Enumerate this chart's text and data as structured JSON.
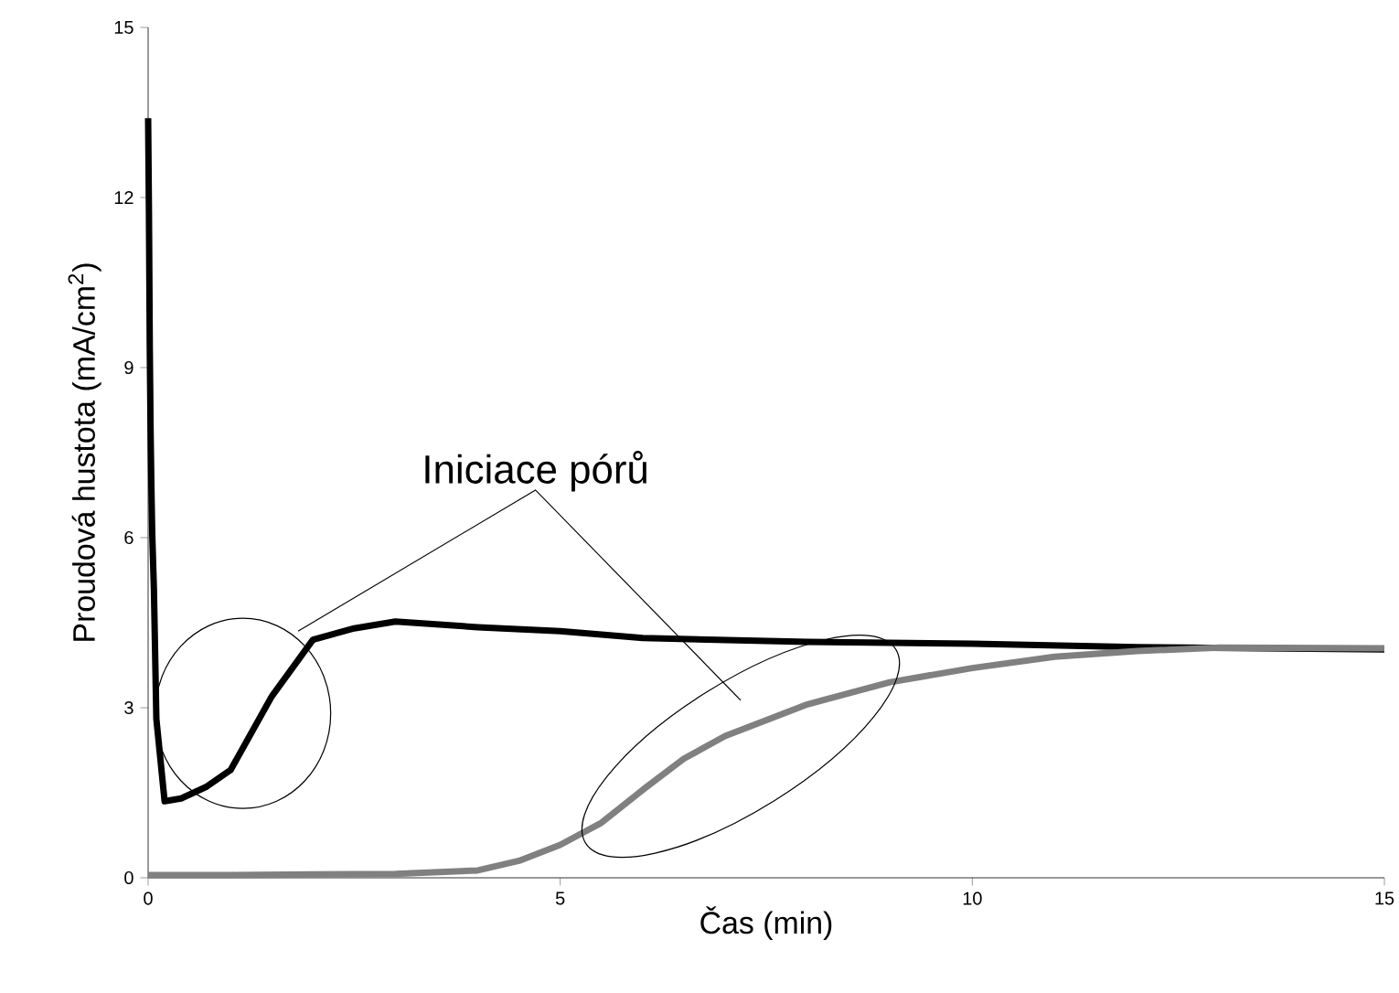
{
  "chart_data": {
    "type": "line",
    "xlabel": "Čas (min)",
    "ylabel": "Proudová hustota (mA/cm$^{2}$)",
    "annotations": [
      "Iniciace pórů"
    ],
    "xlim": [
      0,
      15
    ],
    "ylim": [
      0,
      15
    ],
    "xticks": [
      0,
      5,
      10,
      15
    ],
    "yticks": [
      0,
      3,
      6,
      9,
      12,
      15
    ],
    "grid": false,
    "marker": "none",
    "line_style": "solid",
    "series": [
      {
        "color": "#000000",
        "x": [
          0,
          0.01,
          0.02,
          0.03,
          0.04,
          0.05,
          0.07,
          0.1,
          0.2,
          0.4,
          0.7,
          1,
          1.5,
          2,
          2.5,
          3,
          4,
          5,
          6,
          8,
          10,
          12,
          15
        ],
        "values": [
          13.4,
          11.7,
          9.35,
          7.85,
          6.85,
          6.05,
          5.1,
          2.8,
          1.35,
          1.4,
          1.6,
          1.9,
          3.2,
          4.2,
          4.4,
          4.52,
          4.42,
          4.35,
          4.23,
          4.16,
          4.13,
          4.07,
          4.03
        ]
      },
      {
        "color": "#808080",
        "x": [
          0,
          1,
          2,
          3,
          4,
          4.5,
          5,
          5.5,
          6,
          6.5,
          7,
          8,
          9,
          10,
          11,
          12,
          13,
          15
        ],
        "values": [
          0.05,
          0.05,
          0.06,
          0.07,
          0.13,
          0.3,
          0.58,
          0.97,
          1.55,
          2.1,
          2.5,
          3.06,
          3.45,
          3.7,
          3.9,
          4.0,
          4.06,
          4.05
        ]
      }
    ]
  }
}
